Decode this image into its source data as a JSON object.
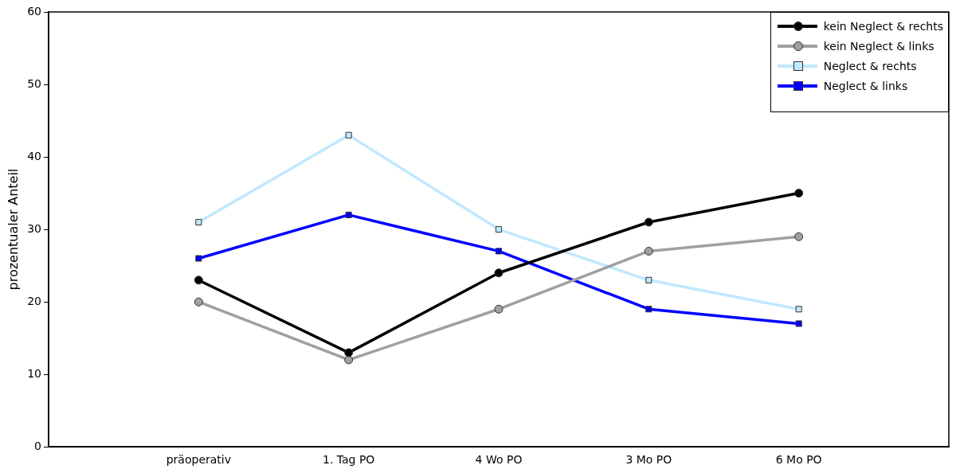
{
  "chart_data": {
    "type": "line",
    "ylabel": "prozentualer Anteil",
    "categories": [
      "präoperativ",
      "1. Tag PO",
      "4 Wo PO",
      "3 Mo PO",
      "6 Mo PO"
    ],
    "ylim": [
      0,
      60
    ],
    "yticks": [
      0,
      10,
      20,
      30,
      40,
      50,
      60
    ],
    "grid": false,
    "legend": "top right",
    "line_style": "solid",
    "series": [
      {
        "name": "kein Neglect & rechts",
        "color": "#000000",
        "marker": "circle",
        "values": [
          23,
          13,
          24,
          31,
          35
        ]
      },
      {
        "name": "kein Neglect & links",
        "color": "#a0a0a0",
        "marker": "circle",
        "values": [
          20,
          12,
          19,
          27,
          29
        ]
      },
      {
        "name": "Neglect & rechts",
        "color": "#c0e8ff",
        "marker": "square",
        "values": [
          31,
          43,
          30,
          23,
          19
        ]
      },
      {
        "name": "Neglect & links",
        "color": "#0000ff",
        "marker": "square",
        "values": [
          26,
          32,
          27,
          19,
          17
        ]
      }
    ]
  }
}
